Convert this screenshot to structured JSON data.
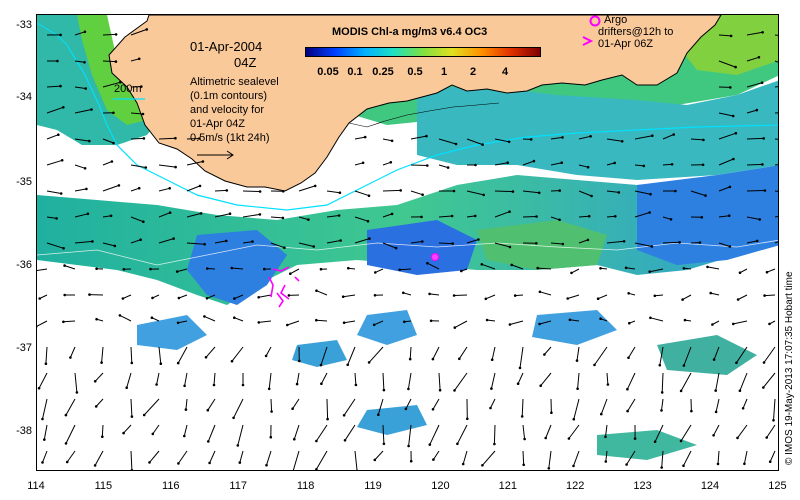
{
  "title": "MODIS Chl-a mg/m3 v6.4 OC3",
  "date": "01-Apr-2004",
  "time": "04Z",
  "contour_label": "200m",
  "description_lines": [
    "Altimetric sealevel",
    "(0.1m contours)",
    "and velocity for",
    "01-Apr 04Z"
  ],
  "scale_label": "0.5m/s (1kt 24h)",
  "argo_lines": [
    "Argo",
    "drifters@12h to",
    "01-Apr 06Z"
  ],
  "credit": "© IMOS 19-May-2013 17:07:35 Hobart time",
  "colorbar": {
    "tick_labels": [
      "0.05",
      "0.1",
      "0.25",
      "0.5",
      "1",
      "2",
      "4"
    ],
    "colors": [
      "#000080",
      "#0040ff",
      "#00b0ff",
      "#20e0c0",
      "#80e040",
      "#e0e020",
      "#ff9000",
      "#e03000",
      "#800000"
    ]
  },
  "axes": {
    "x_ticks": [
      "114",
      "115",
      "116",
      "117",
      "118",
      "119",
      "120",
      "121",
      "122",
      "123",
      "124",
      "125"
    ],
    "y_ticks": [
      "-33",
      "-34",
      "-35",
      "-36",
      "-37",
      "-38"
    ]
  },
  "colors": {
    "land": "#fac99a",
    "contour": "#00e0ff",
    "argo": "#ff00ff",
    "ocean_blue": "#2878e0",
    "ocean_green": "#40c078"
  }
}
